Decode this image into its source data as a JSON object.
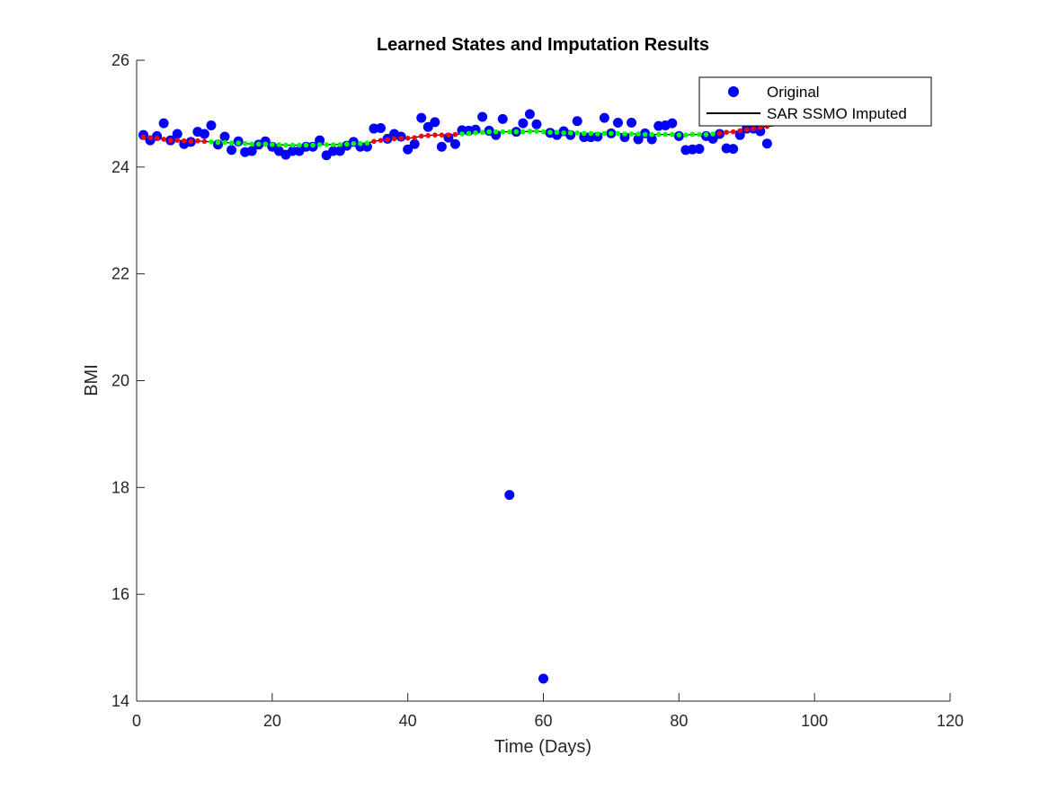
{
  "chart_data": {
    "type": "scatter",
    "title": "Learned States and Imputation Results",
    "xlabel": "Time (Days)",
    "ylabel": "BMI",
    "xlim": [
      0,
      120
    ],
    "ylim": [
      14,
      26
    ],
    "xticks": [
      0,
      20,
      40,
      60,
      80,
      100,
      120
    ],
    "yticks": [
      14,
      16,
      18,
      20,
      22,
      24,
      26
    ],
    "grid": false,
    "legend_location": "top-right",
    "legend": [
      {
        "label": "Original",
        "marker": "filled-circle",
        "color": "#0000ff"
      },
      {
        "label": "SAR SSMO Imputed",
        "marker": "line",
        "color": "#000000"
      }
    ],
    "series": [
      {
        "name": "Original",
        "color": "#0000ff",
        "points": [
          [
            1,
            24.6
          ],
          [
            2,
            24.5
          ],
          [
            3,
            24.58
          ],
          [
            4,
            24.82
          ],
          [
            5,
            24.5
          ],
          [
            6,
            24.62
          ],
          [
            7,
            24.43
          ],
          [
            8,
            24.47
          ],
          [
            9,
            24.66
          ],
          [
            10,
            24.62
          ],
          [
            11,
            24.78
          ],
          [
            12,
            24.42
          ],
          [
            13,
            24.57
          ],
          [
            14,
            24.32
          ],
          [
            15,
            24.48
          ],
          [
            16,
            24.28
          ],
          [
            17,
            24.3
          ],
          [
            18,
            24.42
          ],
          [
            19,
            24.48
          ],
          [
            20,
            24.38
          ],
          [
            21,
            24.3
          ],
          [
            22,
            24.23
          ],
          [
            23,
            24.3
          ],
          [
            24,
            24.3
          ],
          [
            25,
            24.38
          ],
          [
            26,
            24.38
          ],
          [
            27,
            24.5
          ],
          [
            28,
            24.22
          ],
          [
            29,
            24.3
          ],
          [
            30,
            24.3
          ],
          [
            31,
            24.4
          ],
          [
            32,
            24.47
          ],
          [
            33,
            24.38
          ],
          [
            34,
            24.38
          ],
          [
            35,
            24.72
          ],
          [
            36,
            24.73
          ],
          [
            37,
            24.53
          ],
          [
            38,
            24.62
          ],
          [
            39,
            24.57
          ],
          [
            40,
            24.33
          ],
          [
            41,
            24.43
          ],
          [
            42,
            24.92
          ],
          [
            43,
            24.75
          ],
          [
            44,
            24.84
          ],
          [
            45,
            24.38
          ],
          [
            46,
            24.55
          ],
          [
            47,
            24.43
          ],
          [
            48,
            24.69
          ],
          [
            49,
            24.68
          ],
          [
            50,
            24.7
          ],
          [
            51,
            24.94
          ],
          [
            52,
            24.68
          ],
          [
            53,
            24.6
          ],
          [
            54,
            24.9
          ],
          [
            55,
            17.86
          ],
          [
            56,
            24.66
          ],
          [
            57,
            24.82
          ],
          [
            58,
            24.99
          ],
          [
            59,
            24.8
          ],
          [
            60,
            14.42
          ],
          [
            61,
            24.64
          ],
          [
            62,
            24.6
          ],
          [
            63,
            24.67
          ],
          [
            64,
            24.6
          ],
          [
            65,
            24.86
          ],
          [
            66,
            24.56
          ],
          [
            67,
            24.56
          ],
          [
            68,
            24.57
          ],
          [
            69,
            24.92
          ],
          [
            70,
            24.63
          ],
          [
            71,
            24.83
          ],
          [
            72,
            24.56
          ],
          [
            73,
            24.83
          ],
          [
            74,
            24.52
          ],
          [
            75,
            24.63
          ],
          [
            76,
            24.52
          ],
          [
            77,
            24.77
          ],
          [
            78,
            24.78
          ],
          [
            79,
            24.82
          ],
          [
            80,
            24.58
          ],
          [
            81,
            24.32
          ],
          [
            82,
            24.33
          ],
          [
            83,
            24.34
          ],
          [
            84,
            24.58
          ],
          [
            85,
            24.53
          ],
          [
            86,
            24.62
          ],
          [
            87,
            24.35
          ],
          [
            88,
            24.34
          ],
          [
            89,
            24.6
          ],
          [
            90,
            24.72
          ],
          [
            91,
            24.72
          ],
          [
            92,
            24.67
          ],
          [
            93,
            24.44
          ]
        ]
      },
      {
        "name": "SAR SSMO Imputed",
        "color": "#000000",
        "points": [
          [
            1,
            24.56
          ],
          [
            2,
            24.55
          ],
          [
            3,
            24.54
          ],
          [
            4,
            24.52
          ],
          [
            5,
            24.5
          ],
          [
            6,
            24.5
          ],
          [
            7,
            24.49
          ],
          [
            8,
            24.48
          ],
          [
            9,
            24.49
          ],
          [
            10,
            24.48
          ],
          [
            11,
            24.47
          ],
          [
            12,
            24.46
          ],
          [
            13,
            24.46
          ],
          [
            14,
            24.45
          ],
          [
            15,
            24.45
          ],
          [
            16,
            24.44
          ],
          [
            17,
            24.43
          ],
          [
            18,
            24.43
          ],
          [
            19,
            24.43
          ],
          [
            20,
            24.42
          ],
          [
            21,
            24.42
          ],
          [
            22,
            24.41
          ],
          [
            23,
            24.41
          ],
          [
            24,
            24.41
          ],
          [
            25,
            24.41
          ],
          [
            26,
            24.41
          ],
          [
            27,
            24.42
          ],
          [
            28,
            24.42
          ],
          [
            29,
            24.42
          ],
          [
            30,
            24.42
          ],
          [
            31,
            24.43
          ],
          [
            32,
            24.44
          ],
          [
            33,
            24.44
          ],
          [
            34,
            24.45
          ],
          [
            35,
            24.48
          ],
          [
            36,
            24.5
          ],
          [
            37,
            24.51
          ],
          [
            38,
            24.53
          ],
          [
            39,
            24.54
          ],
          [
            40,
            24.54
          ],
          [
            41,
            24.55
          ],
          [
            42,
            24.58
          ],
          [
            43,
            24.59
          ],
          [
            44,
            24.6
          ],
          [
            45,
            24.6
          ],
          [
            46,
            24.6
          ],
          [
            47,
            24.61
          ],
          [
            48,
            24.62
          ],
          [
            49,
            24.63
          ],
          [
            50,
            24.64
          ],
          [
            51,
            24.65
          ],
          [
            52,
            24.66
          ],
          [
            53,
            24.66
          ],
          [
            54,
            24.66
          ],
          [
            55,
            24.66
          ],
          [
            56,
            24.66
          ],
          [
            57,
            24.66
          ],
          [
            58,
            24.67
          ],
          [
            59,
            24.67
          ],
          [
            60,
            24.66
          ],
          [
            61,
            24.65
          ],
          [
            62,
            24.65
          ],
          [
            63,
            24.64
          ],
          [
            64,
            24.64
          ],
          [
            65,
            24.64
          ],
          [
            66,
            24.63
          ],
          [
            67,
            24.63
          ],
          [
            68,
            24.62
          ],
          [
            69,
            24.63
          ],
          [
            70,
            24.63
          ],
          [
            71,
            24.63
          ],
          [
            72,
            24.62
          ],
          [
            73,
            24.62
          ],
          [
            74,
            24.62
          ],
          [
            75,
            24.61
          ],
          [
            76,
            24.61
          ],
          [
            77,
            24.61
          ],
          [
            78,
            24.61
          ],
          [
            79,
            24.61
          ],
          [
            80,
            24.6
          ],
          [
            81,
            24.6
          ],
          [
            82,
            24.61
          ],
          [
            83,
            24.61
          ],
          [
            84,
            24.61
          ],
          [
            85,
            24.62
          ],
          [
            86,
            24.63
          ],
          [
            87,
            24.65
          ],
          [
            88,
            24.66
          ],
          [
            89,
            24.68
          ],
          [
            90,
            24.7
          ],
          [
            91,
            24.72
          ],
          [
            92,
            24.74
          ],
          [
            93,
            24.76
          ],
          [
            94,
            24.77
          ],
          [
            95,
            24.79
          ],
          [
            96,
            24.8
          ],
          [
            97,
            24.81
          ],
          [
            98,
            24.82
          ]
        ]
      }
    ],
    "imputed_point_colors": {
      "red": "#ff0000",
      "green": "#00ff00"
    },
    "imputed_green_ranges": [
      [
        11,
        34
      ],
      [
        48,
        85
      ]
    ]
  }
}
